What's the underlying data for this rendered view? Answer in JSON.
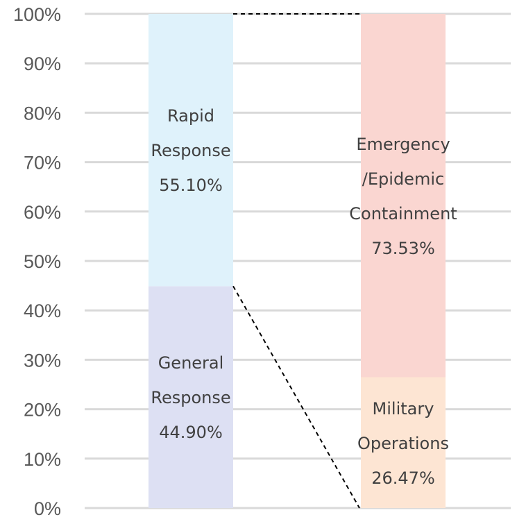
{
  "chart_data": {
    "type": "bar",
    "stacked": true,
    "normalized": true,
    "ylim": [
      0,
      100
    ],
    "yticks": [
      "0%",
      "10%",
      "20%",
      "30%",
      "40%",
      "50%",
      "60%",
      "70%",
      "80%",
      "90%",
      "100%"
    ],
    "grid": true,
    "connectors": "dashed",
    "bars": [
      {
        "name": "left",
        "segments": [
          {
            "name": "General Response",
            "label_lines": [
              "General",
              "Response"
            ],
            "value": 44.9,
            "value_label": "44.90%",
            "color": "#dde0f3"
          },
          {
            "name": "Rapid Response",
            "label_lines": [
              "Rapid",
              "Response"
            ],
            "value": 55.1,
            "value_label": "55.10%",
            "color": "#dff2fb"
          }
        ]
      },
      {
        "name": "right",
        "segments": [
          {
            "name": "Military Operations",
            "label_lines": [
              "Military",
              "Operations"
            ],
            "value": 26.47,
            "value_label": "26.47%",
            "color": "#fde5d3"
          },
          {
            "name": "Emergency/Epidemic Containment",
            "label_lines": [
              "Emergency",
              "/Epidemic",
              "Containment"
            ],
            "value": 73.53,
            "value_label": "73.53%",
            "color": "#fad6d1"
          }
        ]
      }
    ]
  }
}
